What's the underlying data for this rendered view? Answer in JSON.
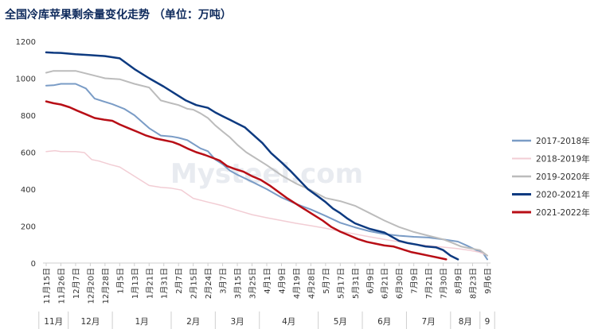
{
  "title": "全国冷库苹果剩余量变化走势 （单位：万吨）",
  "watermark": "Mysteel.com",
  "chart_data": {
    "type": "line",
    "ylim": [
      0,
      1200
    ],
    "yticks": [
      0,
      200,
      400,
      600,
      800,
      1000,
      1200
    ],
    "grid": false,
    "legend_position": "right",
    "categories": [
      "11月15日",
      "11月26日",
      "12月7日",
      "12月20日",
      "12月28日",
      "1月5日",
      "1月13日",
      "1月21日",
      "1月31日",
      "2月7日",
      "2月15日",
      "2月24日",
      "3月7日",
      "3月15日",
      "3月25日",
      "4月1日",
      "4月9日",
      "4月19日",
      "4月28日",
      "5月7日",
      "5月17日",
      "5月31日",
      "6月9日",
      "6月21日",
      "6月30日",
      "7月9日",
      "7月21日",
      "7月30日",
      "8月9日",
      "8月23日",
      "9月6日"
    ],
    "months": [
      {
        "label": "11月",
        "from": 0,
        "to": 1
      },
      {
        "label": "12月",
        "from": 2,
        "to": 4
      },
      {
        "label": "1月",
        "from": 5,
        "to": 8
      },
      {
        "label": "2月",
        "from": 9,
        "to": 11
      },
      {
        "label": "3月",
        "from": 12,
        "to": 14
      },
      {
        "label": "4月",
        "from": 15,
        "to": 18
      },
      {
        "label": "5月",
        "from": 19,
        "to": 21
      },
      {
        "label": "6月",
        "from": 22,
        "to": 24
      },
      {
        "label": "7月",
        "from": 25,
        "to": 27
      },
      {
        "label": "8月",
        "from": 28,
        "to": 29
      },
      {
        "label": "9",
        "from": 30,
        "to": 30
      }
    ],
    "series": [
      {
        "name": "2017-2018年",
        "color": "#7a9cc6",
        "width": 2,
        "points": [
          [
            0,
            960
          ],
          [
            0.5,
            962
          ],
          [
            1,
            970
          ],
          [
            2,
            970
          ],
          [
            2.7,
            945
          ],
          [
            3.3,
            890
          ],
          [
            4.5,
            860
          ],
          [
            5.3,
            835
          ],
          [
            6,
            800
          ],
          [
            7,
            730
          ],
          [
            7.8,
            690
          ],
          [
            8.5,
            685
          ],
          [
            9,
            678
          ],
          [
            9.6,
            665
          ],
          [
            10.5,
            620
          ],
          [
            11,
            605
          ],
          [
            11.5,
            560
          ],
          [
            12,
            535
          ],
          [
            12.5,
            500
          ],
          [
            13,
            478
          ],
          [
            14,
            440
          ],
          [
            15,
            400
          ],
          [
            16,
            355
          ],
          [
            17,
            320
          ],
          [
            18,
            290
          ],
          [
            19,
            255
          ],
          [
            20,
            218
          ],
          [
            21,
            193
          ],
          [
            22,
            172
          ],
          [
            23,
            157
          ],
          [
            24,
            148
          ],
          [
            25,
            142
          ],
          [
            26,
            138
          ],
          [
            27,
            128
          ],
          [
            28,
            116
          ],
          [
            28.6,
            95
          ],
          [
            29.2,
            72
          ],
          [
            29.7,
            55
          ],
          [
            30,
            20
          ]
        ]
      },
      {
        "name": "2018-2019年",
        "color": "#f2cdd4",
        "width": 1.5,
        "points": [
          [
            0,
            603
          ],
          [
            0.6,
            608
          ],
          [
            1,
            603
          ],
          [
            2,
            603
          ],
          [
            2.6,
            598
          ],
          [
            3.1,
            560
          ],
          [
            3.6,
            552
          ],
          [
            4.4,
            532
          ],
          [
            5,
            520
          ],
          [
            6,
            470
          ],
          [
            7,
            420
          ],
          [
            7.8,
            410
          ],
          [
            8.5,
            405
          ],
          [
            9.2,
            395
          ],
          [
            10,
            350
          ],
          [
            11,
            330
          ],
          [
            12,
            310
          ],
          [
            13,
            285
          ],
          [
            14,
            262
          ],
          [
            15,
            245
          ],
          [
            16,
            230
          ],
          [
            17,
            215
          ],
          [
            18,
            202
          ],
          [
            19,
            188
          ],
          [
            20,
            172
          ],
          [
            21,
            157
          ],
          [
            22,
            142
          ],
          [
            23,
            128
          ],
          [
            24,
            115
          ],
          [
            25,
            102
          ],
          [
            26,
            94
          ],
          [
            27,
            86
          ],
          [
            28,
            78
          ],
          [
            28.7,
            70
          ],
          [
            29.4,
            60
          ],
          [
            30,
            42
          ]
        ]
      },
      {
        "name": "2019-2020年",
        "color": "#bcbcbc",
        "width": 2,
        "points": [
          [
            0,
            1030
          ],
          [
            0.5,
            1040
          ],
          [
            1,
            1040
          ],
          [
            2,
            1040
          ],
          [
            3,
            1020
          ],
          [
            4,
            1000
          ],
          [
            5,
            995
          ],
          [
            6,
            970
          ],
          [
            7,
            950
          ],
          [
            7.8,
            880
          ],
          [
            8.5,
            865
          ],
          [
            9,
            855
          ],
          [
            9.6,
            835
          ],
          [
            10,
            830
          ],
          [
            10.5,
            810
          ],
          [
            11,
            785
          ],
          [
            11.5,
            745
          ],
          [
            12,
            712
          ],
          [
            12.5,
            680
          ],
          [
            13,
            640
          ],
          [
            13.6,
            600
          ],
          [
            14.2,
            570
          ],
          [
            15,
            530
          ],
          [
            16,
            475
          ],
          [
            17,
            430
          ],
          [
            18,
            395
          ],
          [
            19,
            352
          ],
          [
            20,
            335
          ],
          [
            21,
            310
          ],
          [
            22,
            270
          ],
          [
            23,
            230
          ],
          [
            24,
            195
          ],
          [
            25,
            168
          ],
          [
            26,
            148
          ],
          [
            27,
            128
          ],
          [
            27.6,
            110
          ],
          [
            28.2,
            90
          ],
          [
            28.8,
            80
          ],
          [
            29.5,
            70
          ],
          [
            30,
            40
          ]
        ]
      },
      {
        "name": "2020-2021年",
        "color": "#0d3a80",
        "width": 2.5,
        "points": [
          [
            0,
            1140
          ],
          [
            0.5,
            1138
          ],
          [
            1,
            1137
          ],
          [
            2,
            1130
          ],
          [
            3,
            1125
          ],
          [
            4,
            1120
          ],
          [
            5,
            1108
          ],
          [
            6,
            1050
          ],
          [
            7,
            1000
          ],
          [
            8,
            955
          ],
          [
            8.8,
            915
          ],
          [
            9.5,
            880
          ],
          [
            10.2,
            855
          ],
          [
            11,
            840
          ],
          [
            11.5,
            815
          ],
          [
            12,
            795
          ],
          [
            12.5,
            775
          ],
          [
            13,
            755
          ],
          [
            13.5,
            735
          ],
          [
            14,
            700
          ],
          [
            14.7,
            650
          ],
          [
            15.3,
            595
          ],
          [
            16,
            545
          ],
          [
            16.6,
            500
          ],
          [
            17.2,
            450
          ],
          [
            17.8,
            400
          ],
          [
            18.5,
            360
          ],
          [
            19,
            330
          ],
          [
            19.5,
            295
          ],
          [
            20,
            270
          ],
          [
            20.5,
            240
          ],
          [
            21,
            215
          ],
          [
            22,
            185
          ],
          [
            23,
            165
          ],
          [
            24,
            120
          ],
          [
            24.6,
            108
          ],
          [
            25.2,
            100
          ],
          [
            25.8,
            90
          ],
          [
            26.5,
            85
          ],
          [
            27,
            70
          ],
          [
            27.5,
            40
          ],
          [
            28,
            20
          ]
        ]
      },
      {
        "name": "2021-2022年",
        "color": "#b80e16",
        "width": 2.5,
        "points": [
          [
            0,
            875
          ],
          [
            0.5,
            865
          ],
          [
            1,
            858
          ],
          [
            1.6,
            843
          ],
          [
            2.1,
            825
          ],
          [
            2.7,
            805
          ],
          [
            3.3,
            785
          ],
          [
            4,
            775
          ],
          [
            4.5,
            770
          ],
          [
            5,
            750
          ],
          [
            5.6,
            730
          ],
          [
            6.2,
            710
          ],
          [
            6.8,
            690
          ],
          [
            7.4,
            675
          ],
          [
            8,
            665
          ],
          [
            8.6,
            655
          ],
          [
            9.1,
            640
          ],
          [
            9.6,
            620
          ],
          [
            10.2,
            600
          ],
          [
            10.8,
            585
          ],
          [
            11.3,
            570
          ],
          [
            11.8,
            555
          ],
          [
            12.3,
            525
          ],
          [
            12.8,
            510
          ],
          [
            13.4,
            495
          ],
          [
            14,
            470
          ],
          [
            14.6,
            450
          ],
          [
            15.2,
            420
          ],
          [
            15.8,
            385
          ],
          [
            16.4,
            350
          ],
          [
            17,
            320
          ],
          [
            17.6,
            290
          ],
          [
            18.2,
            260
          ],
          [
            18.8,
            230
          ],
          [
            19.4,
            195
          ],
          [
            20,
            170
          ],
          [
            20.6,
            150
          ],
          [
            21.2,
            130
          ],
          [
            21.8,
            115
          ],
          [
            22.4,
            105
          ],
          [
            23,
            95
          ],
          [
            23.6,
            90
          ],
          [
            24.2,
            75
          ],
          [
            24.8,
            60
          ],
          [
            25.4,
            50
          ],
          [
            26,
            40
          ],
          [
            26.6,
            30
          ],
          [
            27.2,
            20
          ]
        ]
      }
    ]
  }
}
